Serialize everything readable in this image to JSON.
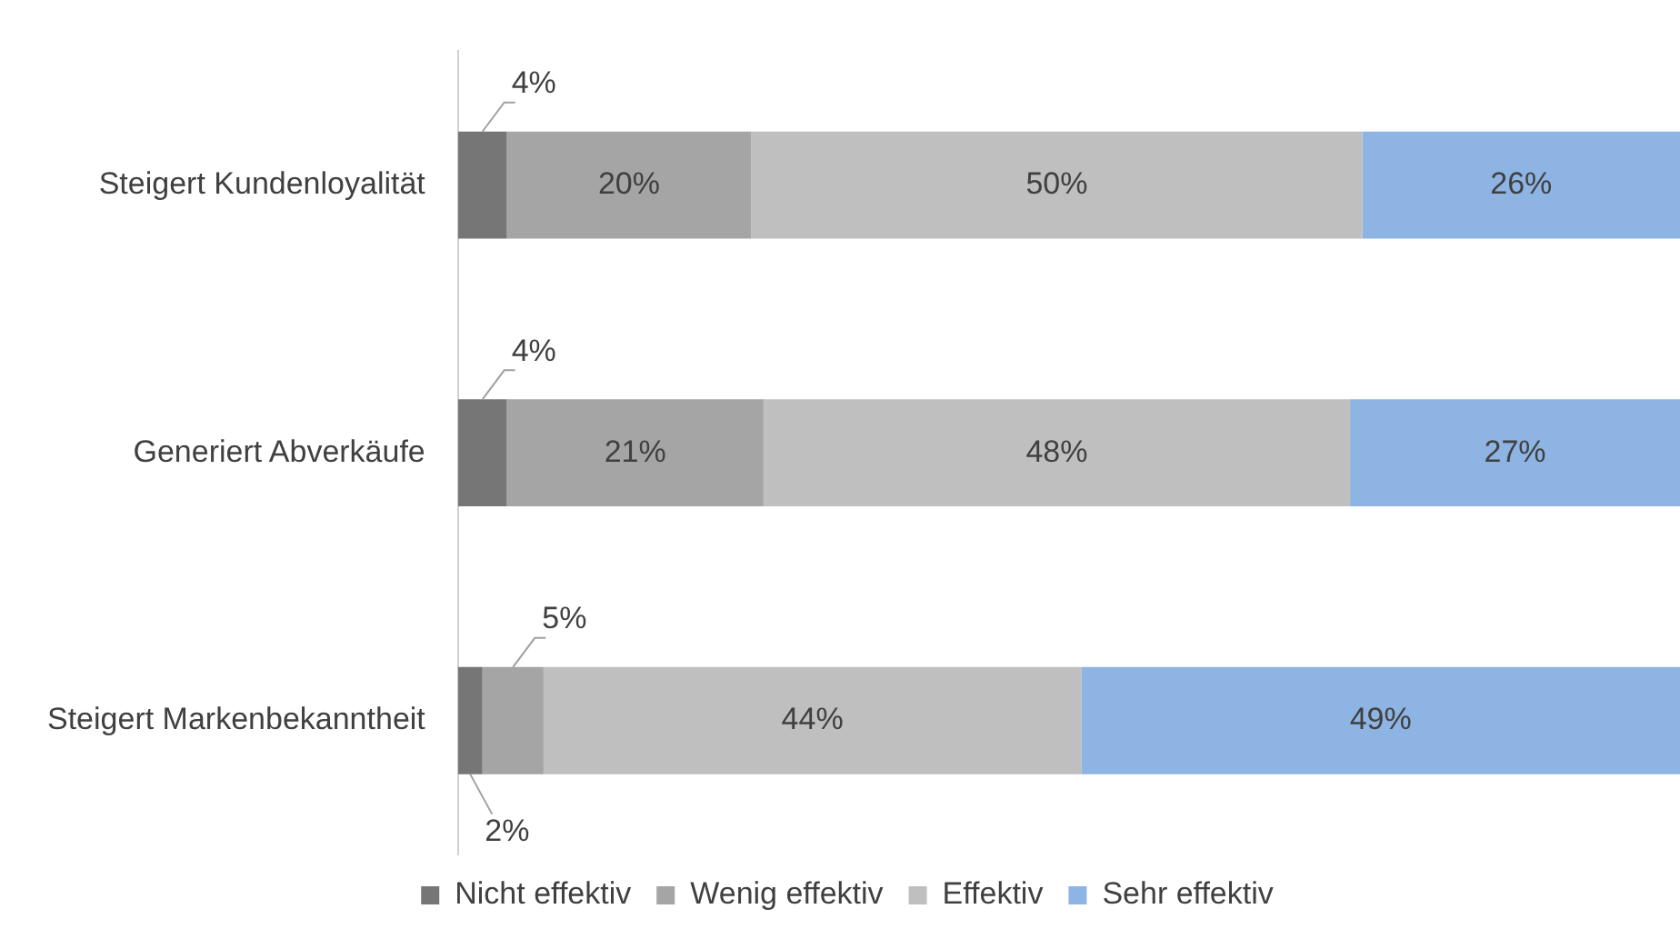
{
  "chart_data": {
    "type": "bar",
    "orientation": "horizontal",
    "stacked": true,
    "categories": [
      "Steigert Kundenloyalität",
      "Generiert Abverkäufe",
      "Steigert Markenbekanntheit"
    ],
    "series": [
      {
        "name": "Nicht effektiv",
        "color": "#767676",
        "values": [
          4,
          4,
          2
        ],
        "value_labels": [
          "4%",
          "4%",
          "2%"
        ]
      },
      {
        "name": "Wenig effektiv",
        "color": "#a5a5a5",
        "values": [
          20,
          21,
          5
        ],
        "value_labels": [
          "20%",
          "21%",
          "5%"
        ]
      },
      {
        "name": "Effektiv",
        "color": "#bfbfbf",
        "values": [
          50,
          48,
          44
        ],
        "value_labels": [
          "50%",
          "48%",
          "44%"
        ]
      },
      {
        "name": "Sehr effektiv",
        "color": "#8eb4e3",
        "values": [
          26,
          27,
          49
        ],
        "value_labels": [
          "26%",
          "27%",
          "49%"
        ]
      }
    ],
    "xlim": [
      0,
      100
    ],
    "tick_labels": "y",
    "legend": "bottom"
  }
}
